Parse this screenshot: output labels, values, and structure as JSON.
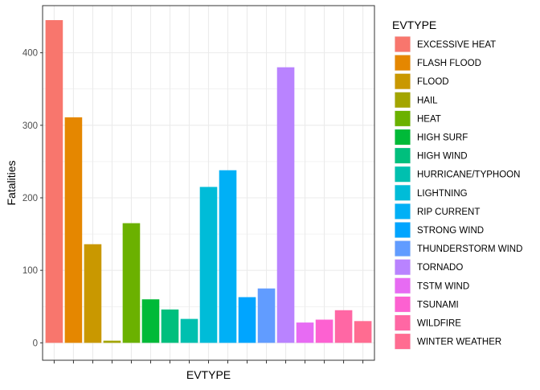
{
  "chart_data": {
    "type": "bar",
    "xlabel": "EVTYPE",
    "ylabel": "Fatalities",
    "ylim": [
      -24,
      465
    ],
    "yticks": [
      0,
      100,
      200,
      300,
      400
    ],
    "grid": true,
    "legend_position": "right",
    "legend": {
      "title": "EVTYPE"
    },
    "categories": [
      "EXCESSIVE HEAT",
      "FLASH FLOOD",
      "FLOOD",
      "HAIL",
      "HEAT",
      "HIGH SURF",
      "HIGH WIND",
      "HURRICANE/TYPHOON",
      "LIGHTNING",
      "RIP CURRENT",
      "STRONG WIND",
      "THUNDERSTORM WIND",
      "TORNADO",
      "TSTM WIND",
      "TSUNAMI",
      "WILDFIRE",
      "WINTER WEATHER"
    ],
    "values": [
      445,
      311,
      136,
      3,
      165,
      60,
      46,
      33,
      215,
      238,
      63,
      75,
      380,
      28,
      32,
      45,
      30
    ],
    "colors": [
      "#F8766D",
      "#E58700",
      "#C99800",
      "#A3A500",
      "#6BB100",
      "#00BA38",
      "#00BF7D",
      "#00C0AF",
      "#00BCD8",
      "#00B0F6",
      "#00A5FF",
      "#619CFF",
      "#B983FF",
      "#E76BF3",
      "#FD61D1",
      "#FF67A4",
      "#FF6C91"
    ]
  }
}
